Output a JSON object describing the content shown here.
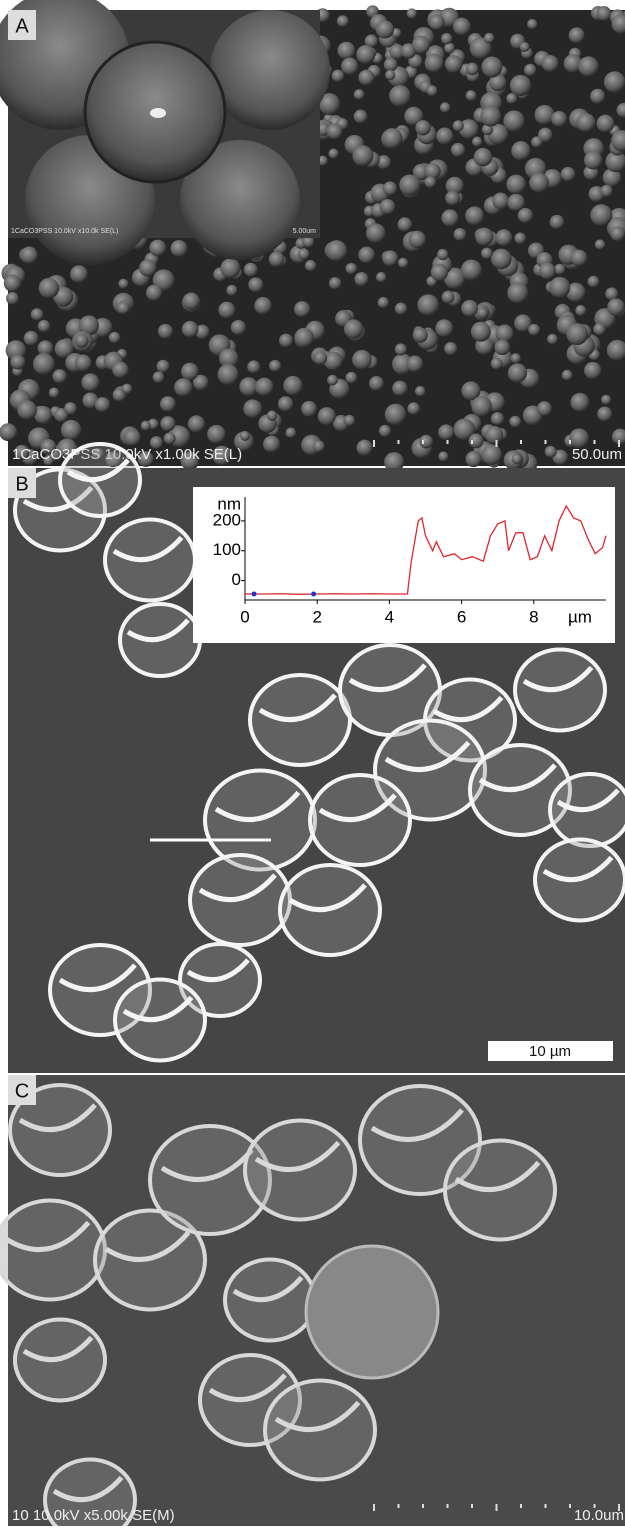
{
  "panels": [
    {
      "label": "A",
      "caption": "1CaCO3PSS 10.0kV x1.00k SE(L)",
      "scale": "50.0um",
      "inset": {
        "caption": "1CaCO3PSS 10.0kV x10.0k SE(L)",
        "scale": "5.00um"
      }
    },
    {
      "label": "B",
      "scale": "10 µm"
    },
    {
      "label": "C",
      "caption": "10 10.0kV x5.00k SE(M)",
      "scale": "10.0um"
    }
  ],
  "chart_data": {
    "type": "line",
    "y_label": "nm",
    "x_label": "µm",
    "xlim": [
      0,
      10
    ],
    "ylim": [
      -65,
      280
    ],
    "xticks": [
      0,
      2,
      4,
      6,
      8
    ],
    "yticks": [
      0,
      100,
      200
    ],
    "series": [
      {
        "color": "#e0262b",
        "x": [
          0,
          0.5,
          1,
          1.5,
          2,
          2.5,
          3,
          3.5,
          4,
          4.5,
          4.6,
          4.8,
          4.9,
          5.0,
          5.2,
          5.3,
          5.5,
          5.8,
          6.0,
          6.3,
          6.6,
          6.8,
          7.0,
          7.2,
          7.3,
          7.5,
          7.7,
          7.9,
          8.1,
          8.3,
          8.5,
          8.7,
          8.9,
          9.1,
          9.3,
          9.5,
          9.7,
          9.9,
          10
        ],
        "values": [
          -45,
          -45,
          -44,
          -46,
          -45,
          -44,
          -45,
          -44,
          -45,
          -45,
          60,
          200,
          210,
          150,
          100,
          130,
          80,
          90,
          70,
          80,
          65,
          150,
          190,
          200,
          100,
          160,
          160,
          70,
          80,
          150,
          100,
          200,
          250,
          210,
          200,
          140,
          90,
          110,
          150
        ]
      }
    ],
    "markers": {
      "color": "#2233cc",
      "x": [
        0.25,
        1.9
      ],
      "values": [
        -45,
        -45
      ]
    }
  }
}
